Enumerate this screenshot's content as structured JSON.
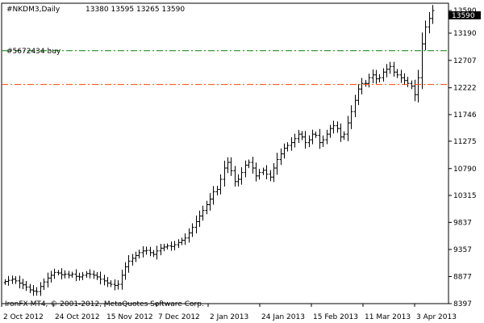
{
  "header": {
    "symbol_timeframe": "#NKDM3,Daily",
    "ohlc": "13380 13595 13265 13590"
  },
  "footer": {
    "copyright": "IronFX MT4, © 2001-2012, MetaQuotes Software Corp."
  },
  "order_label": "#5672434 buy",
  "current_price_label": "13590",
  "colors": {
    "background": "#ffffff",
    "foreground": "#000000",
    "bars": "#000000",
    "order_line": "#008000",
    "stop_line": "#ff4500",
    "price_tag_bg": "#000000",
    "price_tag_text": "#ffffff"
  },
  "chart_data": {
    "type": "ohlc",
    "y_ticks": [
      13590,
      13190,
      12707,
      12222,
      11746,
      11275,
      10790,
      10315,
      9837,
      9357,
      8877,
      8397
    ],
    "x_ticks": [
      "2 Oct 2012",
      "24 Oct 2012",
      "15 Nov 2012",
      "7 Dec 2012",
      "2 Jan 2013",
      "24 Jan 2013",
      "15 Feb 2013",
      "11 Mar 2013",
      "3 Apr 2013"
    ],
    "ylim": [
      8397,
      13720
    ],
    "hlines": [
      {
        "name": "#5672434 buy",
        "value": 12880,
        "style": "dashdot"
      },
      {
        "name": "",
        "value": 12280,
        "style": "dashdot"
      }
    ],
    "close_series": [
      8790,
      8810,
      8830,
      8800,
      8760,
      8730,
      8690,
      8640,
      8620,
      8610,
      8700,
      8780,
      8850,
      8900,
      8950,
      8940,
      8910,
      8920,
      8900,
      8920,
      8880,
      8870,
      8900,
      8930,
      8920,
      8900,
      8870,
      8830,
      8800,
      8760,
      8740,
      8720,
      8740,
      8900,
      9050,
      9150,
      9200,
      9250,
      9300,
      9330,
      9340,
      9300,
      9270,
      9330,
      9380,
      9400,
      9420,
      9410,
      9440,
      9480,
      9520,
      9560,
      9650,
      9750,
      9850,
      9950,
      10050,
      10150,
      10250,
      10380,
      10420,
      10600,
      10800,
      10900,
      10750,
      10560,
      10600,
      10720,
      10850,
      10900,
      10800,
      10660,
      10720,
      10760,
      10690,
      10640,
      10800,
      10950,
      11050,
      11150,
      11200,
      11250,
      11320,
      11400,
      11350,
      11250,
      11300,
      11400,
      11380,
      11250,
      11300,
      11400,
      11500,
      11550,
      11500,
      11350,
      11400,
      11600,
      11800,
      12000,
      12200,
      12300,
      12300,
      12400,
      12450,
      12380,
      12400,
      12500,
      12550,
      12600,
      12500,
      12450,
      12400,
      12350,
      12300,
      12250,
      12100,
      12400,
      13000,
      13300,
      13450,
      13590
    ]
  }
}
